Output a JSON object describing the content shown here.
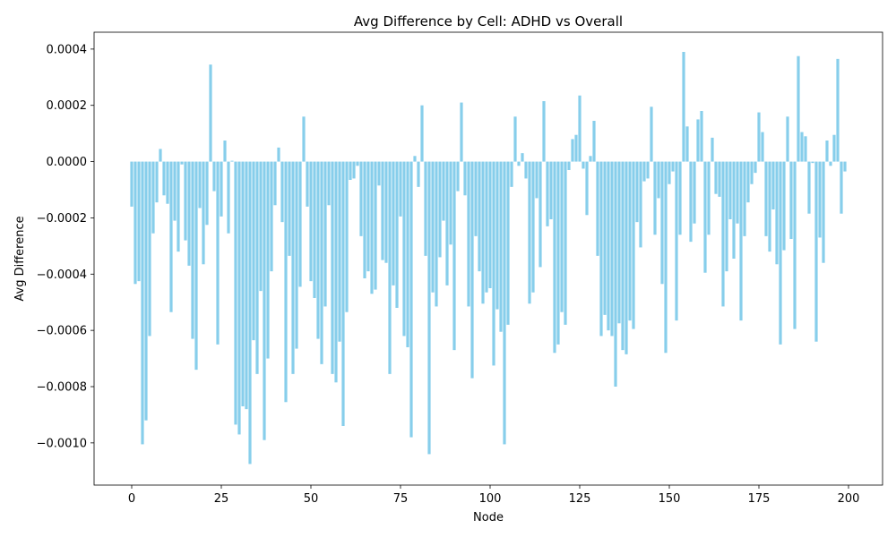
{
  "chart_data": {
    "type": "bar",
    "title": "Avg Difference by Cell: ADHD vs Overall",
    "xlabel": "Node",
    "ylabel": "Avg Difference",
    "xlim": [
      -10.5,
      209.5
    ],
    "ylim": [
      -0.00115,
      0.00046
    ],
    "xticks": [
      0,
      25,
      50,
      75,
      100,
      125,
      150,
      175,
      200
    ],
    "xtick_labels": [
      "0",
      "25",
      "50",
      "75",
      "100",
      "125",
      "150",
      "175",
      "200"
    ],
    "yticks": [
      -0.001,
      -0.0008,
      -0.0006,
      -0.0004,
      -0.0002,
      0.0,
      0.0002,
      0.0004
    ],
    "ytick_labels": [
      "−0.0010",
      "−0.0008",
      "−0.0006",
      "−0.0004",
      "−0.0002",
      "0.0000",
      "0.0002",
      "0.0004"
    ],
    "bar_color": "#87ceeb",
    "grid": false,
    "x": [
      0,
      1,
      2,
      3,
      4,
      5,
      6,
      7,
      8,
      9,
      10,
      11,
      12,
      13,
      14,
      15,
      16,
      17,
      18,
      19,
      20,
      21,
      22,
      23,
      24,
      25,
      26,
      27,
      28,
      29,
      30,
      31,
      32,
      33,
      34,
      35,
      36,
      37,
      38,
      39,
      40,
      41,
      42,
      43,
      44,
      45,
      46,
      47,
      48,
      49,
      50,
      51,
      52,
      53,
      54,
      55,
      56,
      57,
      58,
      59,
      60,
      61,
      62,
      63,
      64,
      65,
      66,
      67,
      68,
      69,
      70,
      71,
      72,
      73,
      74,
      75,
      76,
      77,
      78,
      79,
      80,
      81,
      82,
      83,
      84,
      85,
      86,
      87,
      88,
      89,
      90,
      91,
      92,
      93,
      94,
      95,
      96,
      97,
      98,
      99,
      100,
      101,
      102,
      103,
      104,
      105,
      106,
      107,
      108,
      109,
      110,
      111,
      112,
      113,
      114,
      115,
      116,
      117,
      118,
      119,
      120,
      121,
      122,
      123,
      124,
      125,
      126,
      127,
      128,
      129,
      130,
      131,
      132,
      133,
      134,
      135,
      136,
      137,
      138,
      139,
      140,
      141,
      142,
      143,
      144,
      145,
      146,
      147,
      148,
      149,
      150,
      151,
      152,
      153,
      154,
      155,
      156,
      157,
      158,
      159,
      160,
      161,
      162,
      163,
      164,
      165,
      166,
      167,
      168,
      169,
      170,
      171,
      172,
      173,
      174,
      175,
      176,
      177,
      178,
      179,
      180,
      181,
      182,
      183,
      184,
      185,
      186,
      187,
      188,
      189,
      190,
      191,
      192,
      193,
      194,
      195,
      196,
      197,
      198,
      199
    ],
    "values": [
      -0.00016,
      -0.000435,
      -0.000425,
      -0.001005,
      -0.00092,
      -0.00062,
      -0.000255,
      -0.000145,
      4.5e-05,
      -0.00012,
      -0.00015,
      -0.000535,
      -0.00021,
      -0.00032,
      -1e-05,
      -0.00028,
      -0.00037,
      -0.00063,
      -0.00074,
      -0.000165,
      -0.000365,
      -0.000225,
      0.000345,
      -0.000105,
      -0.00065,
      -0.000195,
      7.5e-05,
      -0.000255,
      3e-06,
      -0.000935,
      -0.00097,
      -0.00087,
      -0.00088,
      -0.001075,
      -0.000635,
      -0.000755,
      -0.00046,
      -0.00099,
      -0.0007,
      -0.00039,
      -0.000155,
      5e-05,
      -0.000215,
      -0.000855,
      -0.000335,
      -0.000755,
      -0.000665,
      -0.000445,
      0.00016,
      -0.00016,
      -0.000425,
      -0.000485,
      -0.00063,
      -0.00072,
      -0.000515,
      -0.000155,
      -0.000755,
      -0.000785,
      -0.00064,
      -0.00094,
      -0.000535,
      -6.5e-05,
      -6e-05,
      -1.5e-05,
      -0.000265,
      -0.000415,
      -0.00039,
      -0.00047,
      -0.000455,
      -8.5e-05,
      -0.00035,
      -0.00036,
      -0.000755,
      -0.00044,
      -0.00052,
      -0.000195,
      -0.00062,
      -0.00066,
      -0.00098,
      2e-05,
      -9e-05,
      0.0002,
      -0.000335,
      -0.00104,
      -0.000465,
      -0.000515,
      -0.00034,
      -0.00021,
      -0.00044,
      -0.000295,
      -0.00067,
      -0.000105,
      0.00021,
      -0.00012,
      -0.000515,
      -0.00077,
      -0.000265,
      -0.00039,
      -0.000505,
      -0.000465,
      -0.00045,
      -0.000725,
      -0.000525,
      -0.000605,
      -0.001005,
      -0.00058,
      -9e-05,
      0.00016,
      -1.5e-05,
      3e-05,
      -6e-05,
      -0.000505,
      -0.000465,
      -0.00013,
      -0.000375,
      0.000215,
      -0.00023,
      -0.000205,
      -0.00068,
      -0.00065,
      -0.000535,
      -0.00058,
      -3e-05,
      8e-05,
      9.5e-05,
      0.000235,
      -2.5e-05,
      -0.00019,
      2e-05,
      0.000145,
      -0.000335,
      -0.00062,
      -0.000545,
      -0.0006,
      -0.00062,
      -0.0008,
      -0.000575,
      -0.00067,
      -0.000685,
      -0.000565,
      -0.000595,
      -0.000215,
      -0.000305,
      -7e-05,
      -6e-05,
      0.000195,
      -0.00026,
      -0.00013,
      -0.000435,
      -0.00068,
      -8e-05,
      -3.5e-05,
      -0.000565,
      -0.00026,
      0.00039,
      0.000125,
      -0.000285,
      -0.00022,
      0.00015,
      0.00018,
      -0.000395,
      -0.00026,
      8.5e-05,
      -0.000115,
      -0.000125,
      -0.000515,
      -0.00039,
      -0.000205,
      -0.000345,
      -0.00022,
      -0.000565,
      -0.000265,
      -0.000145,
      -8e-05,
      -4e-05,
      0.000175,
      0.000105,
      -0.000265,
      -0.00032,
      -0.00017,
      -0.000365,
      -0.00065,
      -0.000315,
      0.00016,
      -0.000275,
      -0.000595,
      0.000375,
      0.000105,
      9e-05,
      -0.000185,
      -5e-06,
      -0.00064,
      -0.00027,
      -0.00036,
      7.5e-05,
      -1.5e-05,
      9.5e-05,
      0.000365,
      -0.000185,
      -3.5e-05
    ]
  }
}
